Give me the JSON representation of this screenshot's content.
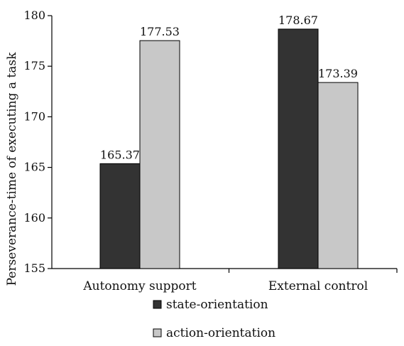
{
  "chart_data": {
    "type": "bar",
    "title": "",
    "ylabel": "Perseverance-time of executing a task",
    "xlabel": "",
    "categories": [
      "Autonomy support",
      "External control"
    ],
    "series": [
      {
        "name": "state-orientation",
        "values": [
          165.37,
          178.67
        ],
        "color": "#333333"
      },
      {
        "name": "action-orientation",
        "values": [
          177.53,
          173.39
        ],
        "color": "#c8c8c8"
      }
    ],
    "data_labels": [
      [
        "165.37",
        "178.67"
      ],
      [
        "177.53",
        "173.39"
      ]
    ],
    "ylim": [
      155,
      180
    ],
    "yticks": [
      155,
      160,
      165,
      170,
      175,
      180
    ],
    "grid": false,
    "legend_position": "bottom"
  }
}
